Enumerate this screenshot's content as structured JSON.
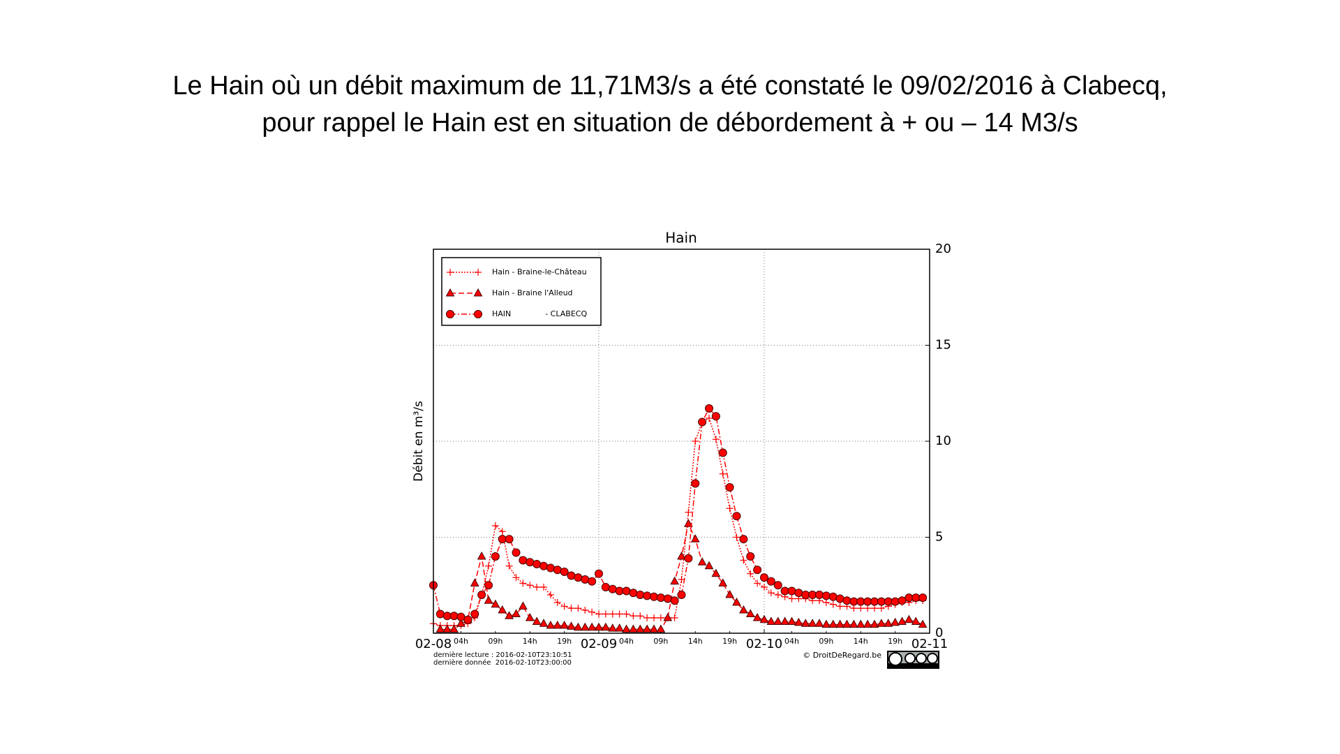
{
  "slide": {
    "title_lines": [
      "Le Hain où un débit maximum de 11,71M3/s a été constaté le 09/02/2016 à Clabecq,",
      "pour rappel le Hain est en situation de débordement à + ou – 14 M3/s"
    ]
  },
  "chart_data": {
    "type": "line",
    "title": "Hain",
    "y_label": "Débit en m³/s",
    "x": [
      0,
      1,
      2,
      3,
      4,
      5,
      6,
      7,
      8,
      9,
      10,
      11,
      12,
      13,
      14,
      15,
      16,
      17,
      18,
      19,
      20,
      21,
      22,
      23,
      24,
      25,
      26,
      27,
      28,
      29,
      30,
      31,
      32,
      33,
      34,
      35,
      36,
      37,
      38,
      39,
      40,
      41,
      42,
      43,
      44,
      45,
      46,
      47,
      48,
      49,
      50,
      51,
      52,
      53,
      54,
      55,
      56,
      57,
      58,
      59,
      60,
      61,
      62,
      63,
      64,
      65,
      66,
      67,
      68,
      69,
      70,
      71
    ],
    "series": [
      {
        "name": "Hain - Braine-le-Château",
        "color": "#ff0000",
        "marker": "plus",
        "dash": "2,2",
        "values": [
          0.5,
          0.4,
          0.4,
          0.4,
          0.4,
          0.5,
          0.8,
          2.0,
          3.5,
          5.6,
          5.3,
          3.5,
          2.9,
          2.6,
          2.5,
          2.4,
          2.4,
          2.0,
          1.6,
          1.4,
          1.3,
          1.3,
          1.2,
          1.1,
          1.0,
          1.0,
          1.0,
          1.0,
          1.0,
          0.9,
          0.9,
          0.8,
          0.8,
          0.8,
          0.8,
          0.8,
          2.8,
          6.3,
          10.0,
          11.0,
          11.2,
          10.1,
          8.3,
          6.5,
          5.0,
          3.8,
          3.1,
          2.6,
          2.4,
          2.1,
          2.0,
          1.9,
          1.8,
          1.8,
          1.8,
          1.7,
          1.7,
          1.6,
          1.5,
          1.4,
          1.4,
          1.3,
          1.3,
          1.3,
          1.3,
          1.3,
          1.4,
          1.5,
          1.6,
          1.6,
          1.7,
          1.7
        ]
      },
      {
        "name": "Hain - Braine l'Alleud",
        "color": "#ff0000",
        "marker": "triangle",
        "dash": "8,4",
        "values": [
          null,
          0.2,
          0.2,
          0.2,
          0.5,
          0.7,
          2.6,
          4.0,
          1.7,
          1.5,
          1.2,
          0.9,
          1.0,
          1.4,
          0.8,
          0.6,
          0.5,
          0.4,
          0.4,
          0.4,
          0.35,
          0.3,
          0.3,
          0.3,
          0.3,
          0.3,
          0.25,
          0.25,
          0.2,
          0.2,
          0.2,
          0.2,
          0.2,
          0.2,
          0.8,
          2.7,
          4.0,
          5.7,
          4.9,
          3.7,
          3.5,
          3.1,
          2.6,
          2.0,
          1.6,
          1.2,
          1.0,
          0.8,
          0.7,
          0.6,
          0.6,
          0.6,
          0.6,
          0.55,
          0.5,
          0.5,
          0.5,
          0.45,
          0.45,
          0.45,
          0.45,
          0.45,
          0.45,
          0.45,
          0.45,
          0.5,
          0.5,
          0.55,
          0.6,
          0.7,
          0.6,
          0.45
        ]
      },
      {
        "name": "HAIN              - CLABECQ",
        "color": "#ff0000",
        "marker": "circle",
        "dash": "8,3,2,3",
        "values": [
          2.5,
          1.0,
          0.9,
          0.9,
          0.85,
          0.7,
          1.0,
          2.0,
          2.5,
          4.0,
          4.9,
          4.9,
          4.2,
          3.8,
          3.7,
          3.6,
          3.5,
          3.4,
          3.3,
          3.2,
          3.0,
          2.9,
          2.8,
          2.7,
          3.1,
          2.4,
          2.3,
          2.2,
          2.2,
          2.1,
          2.0,
          1.95,
          1.9,
          1.85,
          1.8,
          1.7,
          2.0,
          3.9,
          7.8,
          11.0,
          11.71,
          11.3,
          9.4,
          7.6,
          6.1,
          4.9,
          4.0,
          3.3,
          2.9,
          2.7,
          2.5,
          2.2,
          2.2,
          2.1,
          2.0,
          2.0,
          2.0,
          1.95,
          1.9,
          1.8,
          1.7,
          1.65,
          1.65,
          1.65,
          1.65,
          1.65,
          1.65,
          1.65,
          1.7,
          1.85,
          1.85,
          1.85
        ]
      }
    ],
    "xlim": [
      0,
      72
    ],
    "xticks": [
      {
        "value": 0,
        "label": "02-08"
      },
      {
        "value": 4,
        "label": "04h"
      },
      {
        "value": 9,
        "label": "09h"
      },
      {
        "value": 14,
        "label": "14h"
      },
      {
        "value": 19,
        "label": "19h"
      },
      {
        "value": 24,
        "label": "02-09"
      },
      {
        "value": 28,
        "label": "04h"
      },
      {
        "value": 33,
        "label": "09h"
      },
      {
        "value": 38,
        "label": "14h"
      },
      {
        "value": 43,
        "label": "19h"
      },
      {
        "value": 48,
        "label": "02-10"
      },
      {
        "value": 52,
        "label": "04h"
      },
      {
        "value": 57,
        "label": "09h"
      },
      {
        "value": 62,
        "label": "14h"
      },
      {
        "value": 67,
        "label": "19h"
      },
      {
        "value": 72,
        "label": "02-11"
      }
    ],
    "ylim": [
      0,
      20
    ],
    "yticks": [
      0,
      5,
      10,
      15,
      20
    ],
    "y_axis_side": "right",
    "grid": true,
    "legend": "upper left",
    "footer": {
      "last_reading": "dernière lecture : 2016-02-10T23:10:51",
      "last_data": "dernière donnée  2016-02-10T23:00:00",
      "copyright": "© DroitDeRegard.be"
    }
  }
}
